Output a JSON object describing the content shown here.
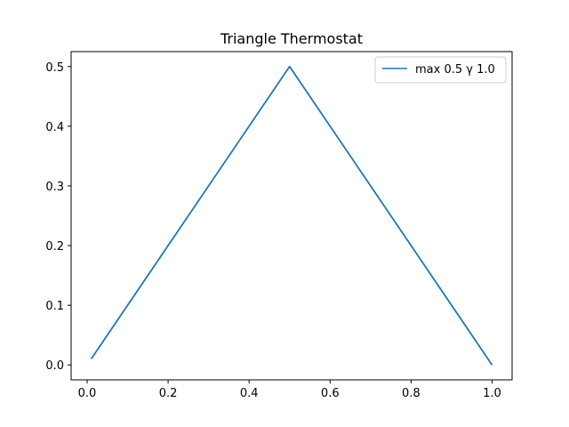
{
  "chart_data": {
    "type": "line",
    "title": "Triangle Thermostat",
    "xlabel": "",
    "ylabel": "",
    "xlim": [
      -0.0395,
      1.0495
    ],
    "ylim": [
      -0.025,
      0.525
    ],
    "x_ticks": [
      0.0,
      0.2,
      0.4,
      0.6,
      0.8,
      1.0
    ],
    "x_tick_labels": [
      "0.0",
      "0.2",
      "0.4",
      "0.6",
      "0.8",
      "1.0"
    ],
    "y_ticks": [
      0.0,
      0.1,
      0.2,
      0.3,
      0.4,
      0.5
    ],
    "y_tick_labels": [
      "0.0",
      "0.1",
      "0.2",
      "0.3",
      "0.4",
      "0.5"
    ],
    "grid": false,
    "legend_position": "top-right",
    "series": [
      {
        "name": "max 0.5 γ 1.0",
        "color": "#1f77b4",
        "x": [
          0.01,
          0.5,
          1.0
        ],
        "y": [
          0.01,
          0.5,
          0.0
        ]
      }
    ]
  }
}
